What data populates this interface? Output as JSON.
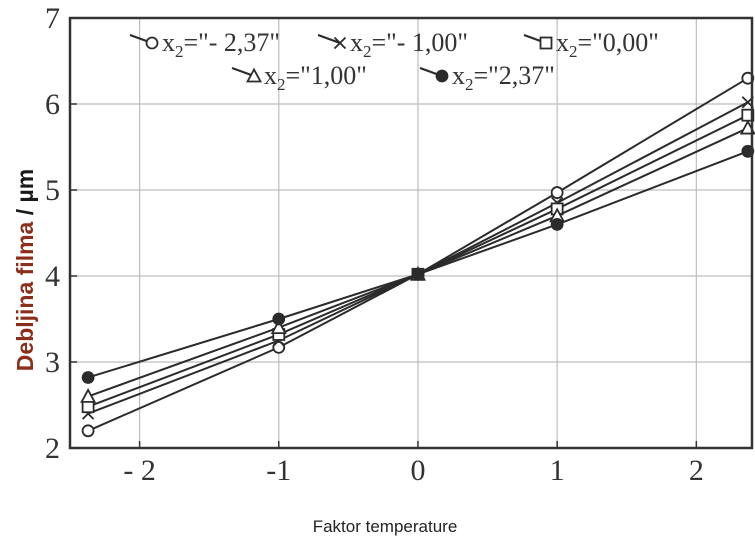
{
  "chart_data": {
    "type": "line",
    "title": "",
    "xlabel": "Faktor temperature",
    "ylabel_main": "Debljina filma",
    "ylabel_unit": " / µm",
    "xlim": [
      -2.5,
      2.4
    ],
    "ylim": [
      2,
      7
    ],
    "x_ticks": [
      -2,
      -1,
      0,
      1,
      2
    ],
    "x_tick_labels": [
      "- 2",
      "-1",
      "0",
      "1",
      "2"
    ],
    "y_ticks": [
      2,
      3,
      4,
      5,
      6,
      7
    ],
    "y_tick_labels": [
      "2",
      "3",
      "4",
      "5",
      "6",
      "7"
    ],
    "grid": true,
    "legend_position": "top",
    "x": [
      -2.37,
      -1,
      0,
      1,
      2.37
    ],
    "series": [
      {
        "name": "x2=\"- 2,37\"",
        "label_var": "x",
        "label_sub": "2",
        "label_val": "=\"- 2,37\"",
        "marker": "open-circle",
        "values": [
          2.2,
          3.17,
          4.02,
          4.97,
          6.3
        ]
      },
      {
        "name": "x2=\"- 1,00\"",
        "label_var": "x",
        "label_sub": "2",
        "label_val": "=\"- 1,00\"",
        "marker": "cross",
        "values": [
          2.4,
          3.25,
          4.02,
          4.85,
          6.02
        ]
      },
      {
        "name": "x2=\"0,00\"",
        "label_var": "x",
        "label_sub": "2",
        "label_val": "=\"0,00\"",
        "marker": "open-square",
        "values": [
          2.48,
          3.32,
          4.02,
          4.78,
          5.87
        ]
      },
      {
        "name": "x2=\"1,00\"",
        "label_var": "x",
        "label_sub": "2",
        "label_val": "=\"1,00\"",
        "marker": "open-triangle",
        "values": [
          2.6,
          3.4,
          4.02,
          4.7,
          5.72
        ]
      },
      {
        "name": "x2=\"2,37\"",
        "label_var": "x",
        "label_sub": "2",
        "label_val": "=\"2,37\"",
        "marker": "filled-circle",
        "values": [
          2.82,
          3.5,
          4.02,
          4.6,
          5.45
        ]
      }
    ],
    "colors": {
      "line": "#2b2b2b",
      "grid": "#bdbdbd",
      "frame": "#333333",
      "ylabel_main": "#8b2e1a",
      "ylabel_unit": "#1a1a1a"
    }
  }
}
